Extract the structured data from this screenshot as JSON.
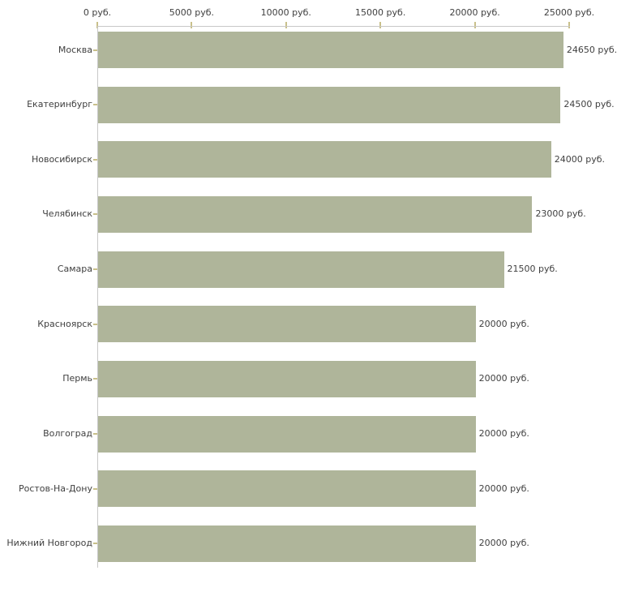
{
  "chart_data": {
    "type": "bar",
    "orientation": "horizontal",
    "title": "",
    "xlabel": "",
    "ylabel": "",
    "unit": "руб.",
    "categories": [
      "Москва",
      "Екатеринбург",
      "Новосибирск",
      "Челябинск",
      "Самара",
      "Красноярск",
      "Пермь",
      "Волгоград",
      "Ростов-На-Дону",
      "Нижний Новгород"
    ],
    "values": [
      24650,
      24500,
      24000,
      23000,
      21500,
      20000,
      20000,
      20000,
      20000,
      20000
    ],
    "value_labels": [
      "24650 руб.",
      "24500 руб.",
      "24000 руб.",
      "23000 руб.",
      "21500 руб.",
      "20000 руб.",
      "20000 руб.",
      "20000 руб.",
      "20000 руб.",
      "20000 руб."
    ],
    "x_ticks": [
      0,
      5000,
      10000,
      15000,
      20000,
      25000
    ],
    "x_tick_labels": [
      "0 руб.",
      "5000 руб.",
      "10000 руб.",
      "15000 руб.",
      "20000 руб.",
      "25000 руб."
    ],
    "xlim": [
      0,
      25000
    ],
    "axis_position": "top",
    "grid": false,
    "legend": "none",
    "colors": {
      "bar": "#afb59a",
      "axis_line": "#c8c8c8",
      "tick": "#c9c08a",
      "text": "#3f3f3f",
      "background": "#ffffff"
    }
  }
}
